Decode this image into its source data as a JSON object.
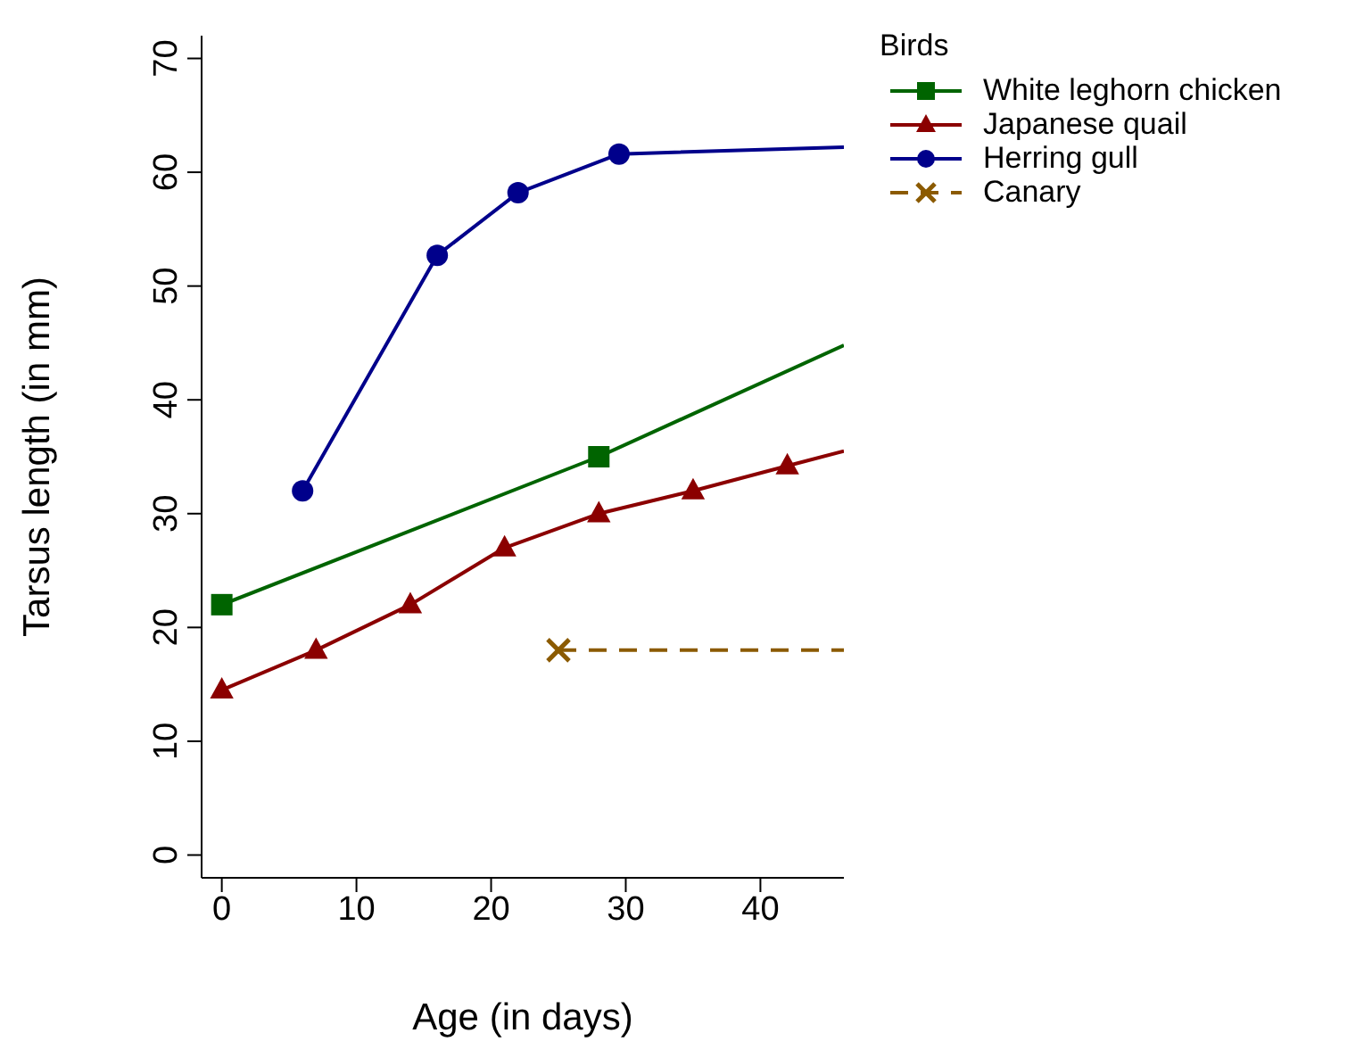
{
  "chart_data": {
    "type": "line",
    "xlabel": "Age (in days)",
    "ylabel": "Tarsus length (in mm)",
    "legend_title": "Birds",
    "legend": "top right",
    "grid": false,
    "xlim": [
      -1.5,
      46.2
    ],
    "xticks": [
      0,
      10,
      20,
      30,
      40
    ],
    "ylim": [
      -2,
      72
    ],
    "yticks": [
      0,
      10,
      20,
      30,
      40,
      50,
      60,
      70
    ],
    "series": [
      {
        "name": "White leghorn chicken",
        "color": "#006400",
        "marker": "square",
        "line_style": "solid",
        "x": [
          0,
          28,
          46.2
        ],
        "values": [
          22,
          35,
          44.8
        ]
      },
      {
        "name": "Japanese quail",
        "color": "#8b0000",
        "marker": "triangle",
        "line_style": "solid",
        "x": [
          0,
          7,
          14,
          21,
          28,
          35,
          42,
          46.2
        ],
        "values": [
          14.5,
          18,
          22,
          27,
          30,
          32,
          34.2,
          35.5
        ]
      },
      {
        "name": "Herring gull",
        "color": "#00008b",
        "marker": "circle",
        "line_style": "solid",
        "x": [
          6,
          16,
          22,
          29.5,
          46.2
        ],
        "values": [
          32,
          52.7,
          58.2,
          61.6,
          62.2
        ]
      },
      {
        "name": "Canary",
        "color": "#8b5a00",
        "marker": "cross",
        "line_style": "dashed",
        "x": [
          25,
          46.2
        ],
        "values": [
          18,
          18
        ]
      }
    ]
  }
}
